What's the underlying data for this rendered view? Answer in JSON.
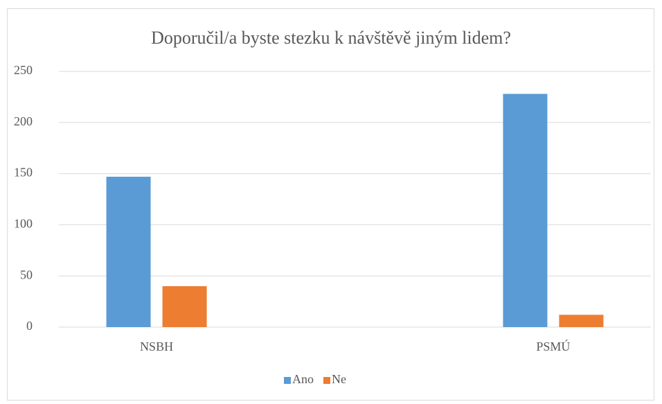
{
  "chart_data": {
    "type": "bar",
    "title": "Doporučil/a byste stezku k návštěvě jiným lidem?",
    "categories": [
      "NSBH",
      "PSMÚ"
    ],
    "series": [
      {
        "name": "Ano",
        "color": "#5b9bd5",
        "values": [
          147,
          228
        ]
      },
      {
        "name": "Ne",
        "color": "#ed7d31",
        "values": [
          40,
          12
        ]
      }
    ],
    "ylim": [
      0,
      250
    ],
    "yticks": [
      0,
      50,
      100,
      150,
      200,
      250
    ],
    "grid": true,
    "legend": "bottom"
  }
}
